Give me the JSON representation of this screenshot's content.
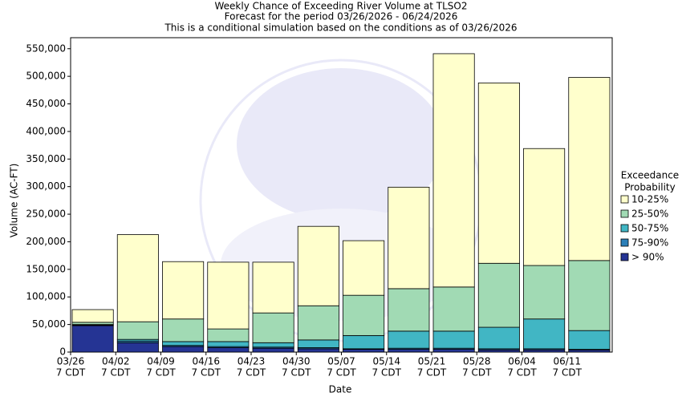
{
  "chart_data": {
    "type": "stacked_bar",
    "title": "Weekly Chance of Exceeding River Volume at TLSO2",
    "subtitle": [
      "Forecast for the period 03/26/2026 - 06/24/2026",
      "This is a conditional simulation based on the conditions as of 03/26/2026"
    ],
    "x_label": "Date",
    "y_label": "Volume (AC-FT)",
    "categories": [
      "03/26",
      "04/02",
      "04/09",
      "04/16",
      "04/23",
      "04/30",
      "05/07",
      "05/14",
      "05/21",
      "05/28",
      "06/04",
      "06/11"
    ],
    "category_sublabel": "7 CDT",
    "legend_title": [
      "Exceedance",
      "Probability"
    ],
    "legend": "right",
    "series": [
      {
        "name": "> 90%",
        "color": "#253494",
        "values": [
          48000,
          17000,
          10000,
          8000,
          7000,
          6000,
          5000,
          5000,
          5000,
          4000,
          4000,
          4000
        ]
      },
      {
        "name": "75-90%",
        "color": "#2c7fb8",
        "values": [
          1000,
          3000,
          2000,
          2000,
          2000,
          2000,
          1000,
          2000,
          2000,
          2000,
          2000,
          1000
        ]
      },
      {
        "name": "50-75%",
        "color": "#41b6c4",
        "values": [
          1000,
          3000,
          7000,
          9000,
          8000,
          14000,
          24000,
          31000,
          31000,
          39000,
          54000,
          34000
        ]
      },
      {
        "name": "25-50%",
        "color": "#a1dab4",
        "values": [
          4000,
          32000,
          41000,
          23000,
          54000,
          62000,
          73000,
          77000,
          80000,
          116000,
          97000,
          127000
        ]
      },
      {
        "name": "10-25%",
        "color": "#ffffcc",
        "values": [
          23000,
          158000,
          104000,
          121000,
          92000,
          144000,
          99000,
          184000,
          423000,
          327000,
          212000,
          332000
        ]
      }
    ],
    "ylim": [
      0,
      570000
    ],
    "yticks": [
      0,
      {
        "value": 50000,
        "label": "50,000"
      },
      {
        "value": 100000,
        "label": "100,000"
      },
      {
        "value": 150000,
        "label": "150,000"
      },
      {
        "value": 200000,
        "label": "200,000"
      },
      {
        "value": 250000,
        "label": "250,000"
      },
      {
        "value": 300000,
        "label": "300,000"
      },
      {
        "value": 350000,
        "label": "350,000"
      },
      {
        "value": 400000,
        "label": "400,000"
      },
      {
        "value": 450000,
        "label": "450,000"
      },
      {
        "value": 500000,
        "label": "500,000"
      },
      {
        "value": 550000,
        "label": "550,000"
      }
    ],
    "grid": false
  }
}
